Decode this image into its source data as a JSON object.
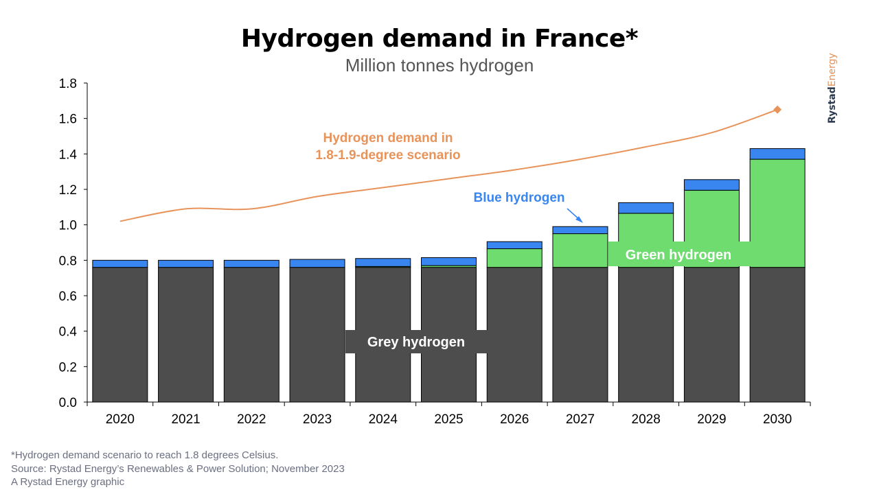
{
  "header": {
    "title": "Hydrogen demand in France*",
    "subtitle": "Million tonnes hydrogen"
  },
  "brand": {
    "part1": "Rystad",
    "part2": "Energy"
  },
  "footnotes": {
    "note": "*Hydrogen demand scenario to reach 1.8 degrees Celsius.",
    "source": "Source: Rystad Energy’s Renewables & Power Solution; November 2023",
    "credit": "A Rystad Energy graphic"
  },
  "annotations": {
    "scenario_line1": "Hydrogen demand in",
    "scenario_line2": "1.8-1.9-degree scenario",
    "blue": "Blue hydrogen",
    "green": "Green hydrogen",
    "grey": "Grey hydrogen"
  },
  "chart_data": {
    "type": "bar",
    "stacked": true,
    "categories": [
      "2020",
      "2021",
      "2022",
      "2023",
      "2024",
      "2025",
      "2026",
      "2027",
      "2028",
      "2029",
      "2030"
    ],
    "series": [
      {
        "name": "Grey hydrogen",
        "color": "#4d4d4d",
        "values": [
          0.76,
          0.76,
          0.76,
          0.76,
          0.76,
          0.76,
          0.76,
          0.76,
          0.76,
          0.76,
          0.76
        ]
      },
      {
        "name": "Green hydrogen",
        "color": "#6fdc6f",
        "values": [
          0,
          0,
          0,
          0,
          0.005,
          0.01,
          0.105,
          0.19,
          0.305,
          0.435,
          0.61
        ]
      },
      {
        "name": "Blue hydrogen",
        "color": "#3a86f0",
        "values": [
          0.04,
          0.04,
          0.04,
          0.045,
          0.045,
          0.045,
          0.04,
          0.04,
          0.06,
          0.06,
          0.06
        ]
      }
    ],
    "line": {
      "name": "Hydrogen demand in 1.8-1.9-degree scenario",
      "color": "#e8935a",
      "values": [
        1.02,
        1.09,
        1.09,
        1.16,
        1.21,
        1.26,
        1.31,
        1.37,
        1.44,
        1.52,
        1.65
      ]
    },
    "ylim": [
      0,
      1.8
    ],
    "yticks": [
      "0.0",
      "0.2",
      "0.4",
      "0.6",
      "0.8",
      "1.0",
      "1.2",
      "1.4",
      "1.6",
      "1.8"
    ],
    "grid": false,
    "legend": "none"
  }
}
